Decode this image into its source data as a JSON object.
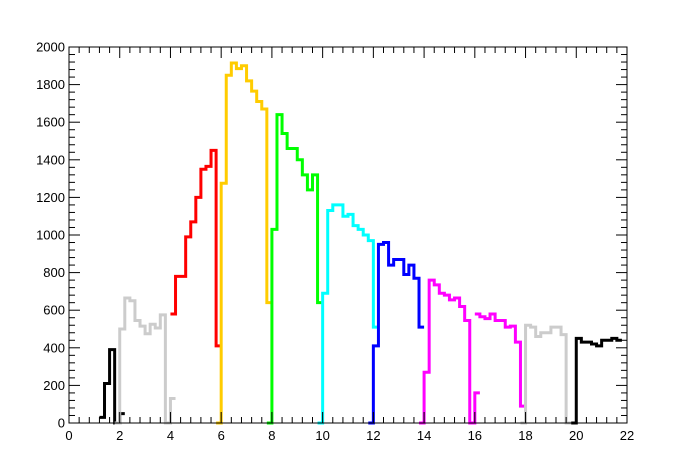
{
  "chart_data": {
    "type": "step",
    "xlim": [
      0,
      22
    ],
    "ylim": [
      0,
      2000
    ],
    "x_ticks": [
      "0",
      "2",
      "4",
      "6",
      "8",
      "10",
      "12",
      "14",
      "16",
      "18",
      "20",
      "22"
    ],
    "y_ticks": [
      "0",
      "200",
      "400",
      "600",
      "800",
      "1000",
      "1200",
      "1400",
      "1600",
      "1800",
      "2000"
    ],
    "grid": false,
    "legend": "none",
    "bin_width": 0.2,
    "series": [
      {
        "color": "#000000",
        "x_start": 1.2,
        "values": [
          30,
          210,
          390,
          0,
          50
        ]
      },
      {
        "color": "#cccccc",
        "x_start": 1.8,
        "values": [
          0,
          500,
          665,
          650,
          545,
          515,
          475,
          525,
          505,
          575,
          0,
          130
        ]
      },
      {
        "color": "#ff0000",
        "x_start": 4.0,
        "values": [
          580,
          780,
          780,
          990,
          1070,
          1200,
          1350,
          1365,
          1450,
          410
        ]
      },
      {
        "color": "#ffcc00",
        "x_start": 5.8,
        "values": [
          0,
          1275,
          1850,
          1915,
          1885,
          1900,
          1820,
          1765,
          1710,
          1670,
          640
        ]
      },
      {
        "color": "#00ff00",
        "x_start": 7.8,
        "values": [
          0,
          1030,
          1640,
          1540,
          1460,
          1460,
          1400,
          1320,
          1240,
          1320,
          640
        ]
      },
      {
        "color": "#00ffff",
        "x_start": 9.8,
        "values": [
          0,
          690,
          1130,
          1160,
          1160,
          1100,
          1110,
          1050,
          1030,
          1000,
          970,
          510
        ]
      },
      {
        "color": "#0000ff",
        "x_start": 11.8,
        "values": [
          0,
          410,
          950,
          960,
          840,
          870,
          870,
          790,
          840,
          770,
          510
        ]
      },
      {
        "color": "#ff00ff",
        "x_start": 13.8,
        "values": [
          0,
          270,
          760,
          735,
          690,
          680,
          655,
          665,
          620,
          545,
          0,
          160
        ]
      },
      {
        "color": "#ff00ff",
        "x_start": 16.0,
        "values": [
          580,
          565,
          555,
          580,
          545,
          545,
          510,
          515,
          430,
          90
        ]
      },
      {
        "color": "#cccccc",
        "x_start": 17.8,
        "values": [
          0,
          520,
          510,
          460,
          480,
          480,
          510,
          510,
          470,
          0
        ]
      },
      {
        "color": "#000000",
        "x_start": 19.8,
        "values": [
          0,
          450,
          430,
          430,
          420,
          410,
          440,
          440,
          450,
          440
        ]
      }
    ]
  }
}
